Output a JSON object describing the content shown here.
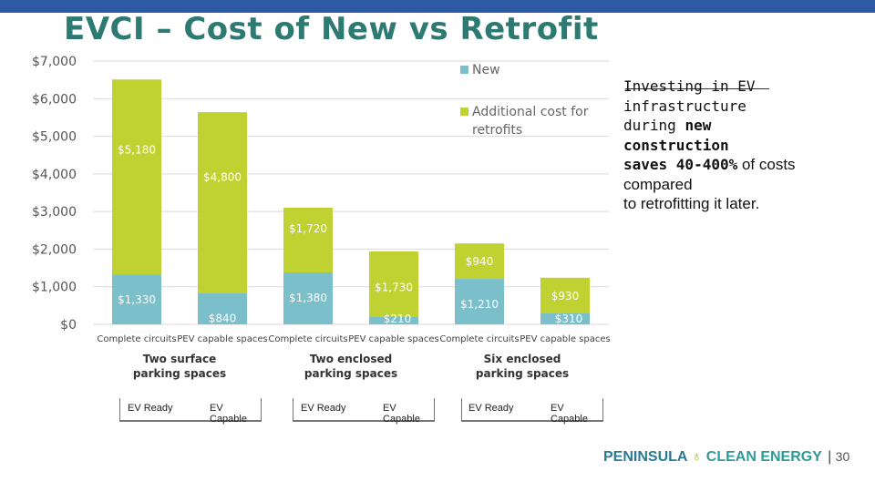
{
  "slide": {
    "title": "EVCI – Cost of New vs Retrofit",
    "side_text": {
      "line1": "Investing in EV",
      "line2": "infrastructure",
      "line3_pre": "during ",
      "line3_bold": "new",
      "line4_bold": "construction",
      "line5_bold": "saves 40-400%",
      "line5_post": " of costs",
      "line6": "compared",
      "line7": "to retrofitting it later."
    },
    "boxes": [
      {
        "left": "EV Ready",
        "right": "EV Capable"
      },
      {
        "left": "EV Ready",
        "right": "EV Capable"
      },
      {
        "left": "EV Ready",
        "right": "EV Capable"
      }
    ],
    "footer": {
      "logo_part1": "PENINSULA",
      "logo_leaf": "♁",
      "logo_part2": "CLEAN ENERGY",
      "separator": "|",
      "page_number": "30"
    }
  },
  "chart_data": {
    "type": "bar",
    "stacked": true,
    "categories": [
      "Complete circuits",
      "PEV capable spaces",
      "Complete circuits",
      "PEV capable spaces",
      "Complete circuits",
      "PEV capable spaces"
    ],
    "groups": [
      {
        "label": "Two surface\nparking spaces"
      },
      {
        "label": "Two enclosed\nparking spaces"
      },
      {
        "label": "Six enclosed\nparking spaces"
      }
    ],
    "series": [
      {
        "name": "New",
        "color": "#7bbfcb",
        "values": [
          1330,
          840,
          1380,
          210,
          1210,
          310
        ],
        "labels": [
          "$1,330",
          "$840",
          "$1,380",
          "$210",
          "$1,210",
          "$310"
        ]
      },
      {
        "name": "Additional cost for retrofits",
        "color": "#bfd231",
        "values": [
          5180,
          4800,
          1720,
          1730,
          940,
          930
        ],
        "labels": [
          "$5,180",
          "$4,800",
          "$1,720",
          "$1,730",
          "$940",
          "$930"
        ]
      }
    ],
    "ylim": [
      0,
      7000
    ],
    "yticks": [
      0,
      1000,
      2000,
      3000,
      4000,
      5000,
      6000,
      7000
    ],
    "ytick_labels": [
      "$0",
      "$1,000",
      "$2,000",
      "$3,000",
      "$4,000",
      "$5,000",
      "$6,000",
      "$7,000"
    ],
    "grid": true,
    "legend_position": "top-right"
  }
}
